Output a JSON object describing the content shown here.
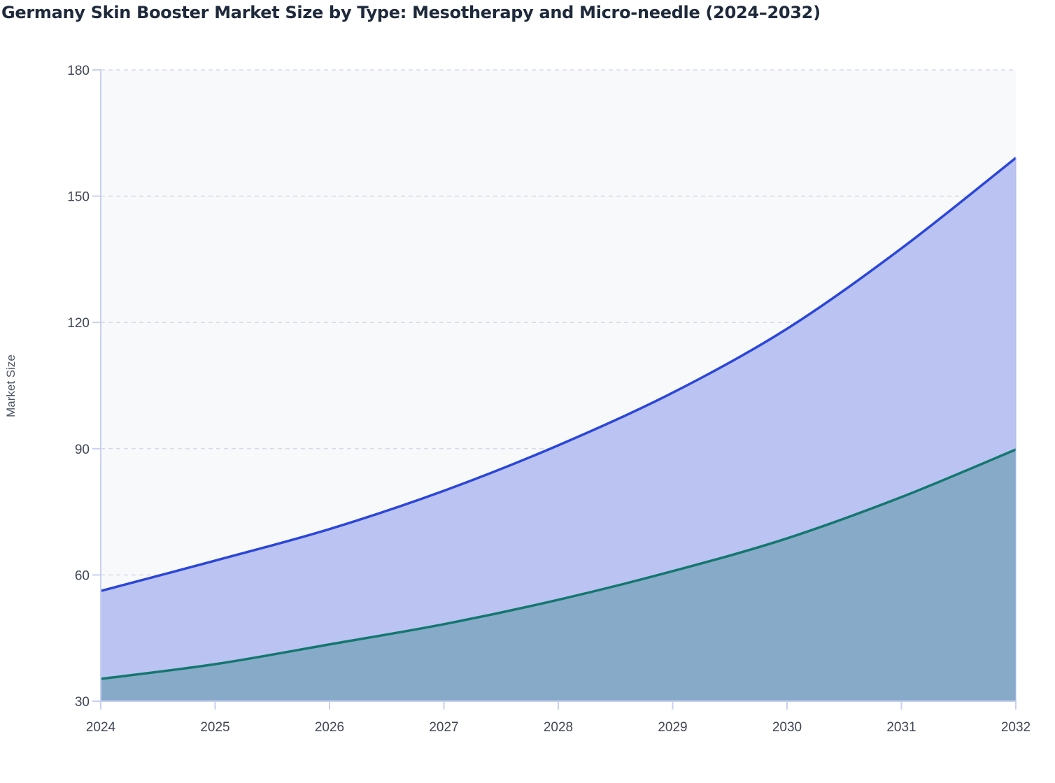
{
  "chart_data": {
    "type": "area",
    "stacked": true,
    "title": "Germany Skin Booster Market Size by Type: Mesotherapy and Micro-needle (2024–2032)",
    "xlabel": "",
    "ylabel": "Market Size",
    "categories": [
      "2024",
      "2025",
      "2026",
      "2027",
      "2028",
      "2029",
      "2030",
      "2031",
      "2032"
    ],
    "series": [
      {
        "name": "Micro-needle",
        "values": [
          35.3,
          38.8,
          43.5,
          48.3,
          54.1,
          60.9,
          68.7,
          78.5,
          89.8
        ],
        "line_color": "#13776f",
        "fill_color": "#87aac8"
      },
      {
        "name": "Mesotherapy",
        "values": [
          20.9,
          24.6,
          27.4,
          31.7,
          36.7,
          42.4,
          49.8,
          59.1,
          69.3
        ],
        "cumulative": [
          56.2,
          63.4,
          70.9,
          80.0,
          90.8,
          103.3,
          118.5,
          137.6,
          159.1
        ],
        "line_color": "#2b46d9",
        "fill_color": "#bbc3f2"
      }
    ],
    "ylim": [
      30,
      180
    ],
    "yticks": [
      30,
      60,
      90,
      120,
      150,
      180
    ],
    "grid": true,
    "legend": "none",
    "plot_background": "#f8f9fb"
  }
}
